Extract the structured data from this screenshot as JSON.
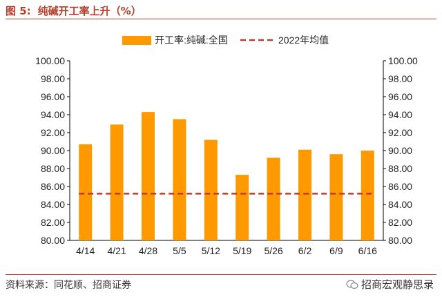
{
  "header": {
    "figure_label": "图 5:",
    "figure_title": "纯碱开工率上升（%）"
  },
  "chart_data": {
    "type": "bar",
    "categories": [
      "4/14",
      "4/21",
      "4/28",
      "5/5",
      "5/12",
      "5/19",
      "5/26",
      "6/2",
      "6/9",
      "6/16"
    ],
    "series": [
      {
        "name": "开工率:纯碱:全国",
        "type": "bar",
        "color": "#ff9900",
        "values": [
          90.7,
          92.9,
          94.3,
          93.5,
          91.2,
          87.3,
          89.2,
          90.1,
          89.6,
          90.0
        ]
      },
      {
        "name": "2022年均值",
        "type": "line",
        "style": "dashed",
        "color": "#c0392b",
        "values": [
          85.2,
          85.2,
          85.2,
          85.2,
          85.2,
          85.2,
          85.2,
          85.2,
          85.2,
          85.2
        ]
      }
    ],
    "ylim": [
      80,
      100
    ],
    "yticks": [
      "80.00",
      "82.00",
      "84.00",
      "86.00",
      "88.00",
      "90.00",
      "92.00",
      "94.00",
      "96.00",
      "98.00",
      "100.00"
    ],
    "right_axis_mirrors_left": true,
    "grid": false,
    "legend_position": "top"
  },
  "footer": {
    "source": "资料来源：同花顺、招商证券",
    "watermark": "招商宏观静思录"
  }
}
